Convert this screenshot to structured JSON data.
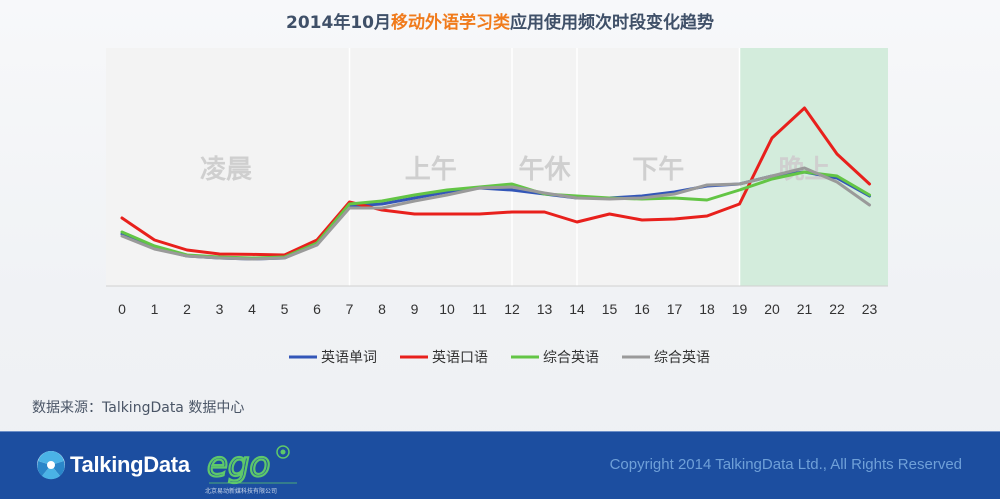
{
  "header": {
    "title_prefix": "2014年10月",
    "title_highlight": "移动外语学习类",
    "title_suffix": "应用使用频次时段变化趋势"
  },
  "source_text": "数据来源：TalkingData 数据中心",
  "footer": {
    "brand_name": "TalkingData",
    "ego_subtitle": "北京易动新媒科技有限公司",
    "copyright": "Copyright 2014 TalkingData Ltd., All Rights Reserved"
  },
  "colors": {
    "accent_orange": "#f07b1c",
    "footer_blue": "#1c4ea0",
    "evening_band": "#d3ecdc"
  },
  "chart_data": {
    "type": "line",
    "title": "2014年10月移动外语学习类应用使用频次时段变化趋势",
    "x": [
      0,
      1,
      2,
      3,
      4,
      5,
      6,
      7,
      8,
      9,
      10,
      11,
      12,
      13,
      14,
      15,
      16,
      17,
      18,
      19,
      20,
      21,
      22,
      23
    ],
    "xlabel": "",
    "ylabel": "",
    "ylim": [
      0,
      100
    ],
    "y_axis_visible": false,
    "grid": false,
    "legend_position": "bottom",
    "time_periods": [
      {
        "label": "凌晨",
        "from": 0,
        "to": 7
      },
      {
        "label": "上午",
        "from": 7,
        "to": 12
      },
      {
        "label": "午休",
        "from": 12,
        "to": 14
      },
      {
        "label": "下午",
        "from": 14,
        "to": 19
      },
      {
        "label": "晚上",
        "from": 19,
        "to": 23,
        "highlight": true
      }
    ],
    "series": [
      {
        "name": "英语单词",
        "color": "#3356b8",
        "values": [
          23,
          16,
          12,
          11,
          10.5,
          11,
          18,
          37,
          38,
          41,
          44,
          46,
          45,
          43,
          41,
          41,
          42,
          44,
          47,
          48,
          52,
          54,
          51,
          42
        ]
      },
      {
        "name": "英语口语",
        "color": "#e8201c",
        "values": [
          31,
          20,
          15,
          13,
          12.8,
          12.5,
          20,
          39,
          35,
          33,
          33,
          33,
          34,
          34,
          29,
          33,
          30,
          30.5,
          32,
          38,
          71,
          86,
          63,
          48
        ]
      },
      {
        "name": "综合英语",
        "color": "#63c545",
        "values": [
          24,
          17,
          12.5,
          11.5,
          11,
          11.5,
          18.5,
          38,
          39.5,
          42.5,
          45,
          46.5,
          48,
          43,
          42,
          41,
          40.5,
          41,
          40,
          45,
          50.5,
          54,
          52,
          42.5
        ]
      },
      {
        "name": "综合英语",
        "color": "#9a9a9a",
        "values": [
          22,
          15.5,
          12,
          11,
          10.5,
          11,
          17.5,
          36,
          36,
          39.5,
          42.5,
          46,
          46.5,
          43.5,
          41,
          40.5,
          41,
          43,
          47.5,
          48,
          52,
          56,
          49,
          37.5
        ]
      }
    ]
  }
}
